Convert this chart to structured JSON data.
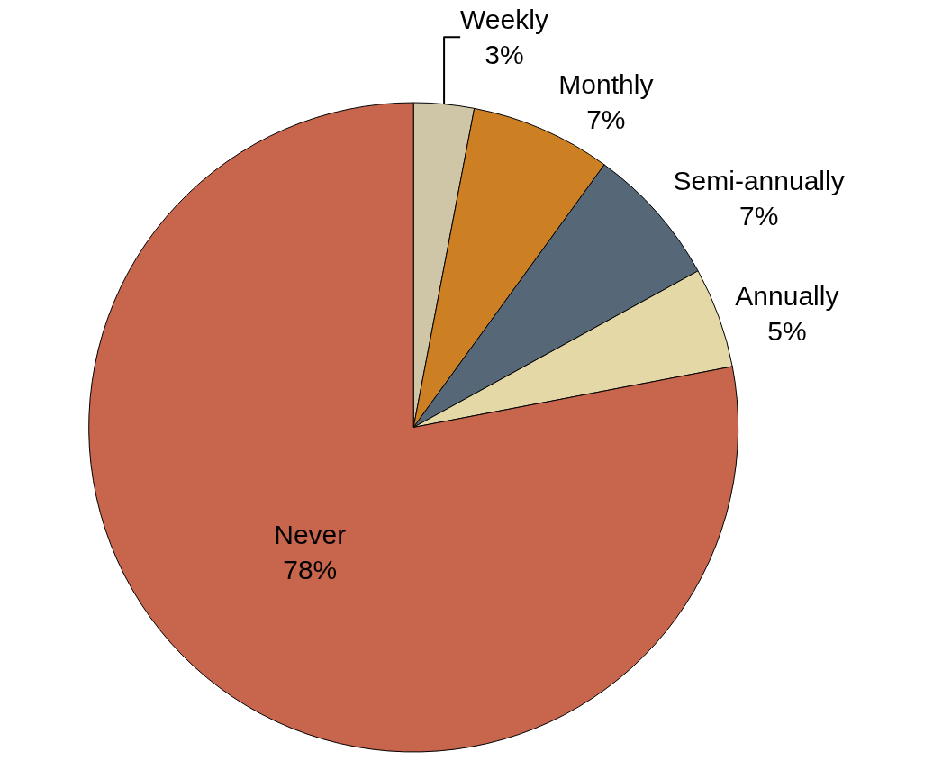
{
  "chart_data": {
    "type": "pie",
    "categories": [
      "Weekly",
      "Monthly",
      "Semi-annually",
      "Annually",
      "Never"
    ],
    "values": [
      3,
      7,
      7,
      5,
      78
    ],
    "value_labels": [
      "3%",
      "7%",
      "7%",
      "5%",
      "78%"
    ],
    "colors": [
      "#cfc6a8",
      "#cd8023",
      "#566877",
      "#e4d8a6",
      "#c8654d"
    ],
    "legend": false
  }
}
